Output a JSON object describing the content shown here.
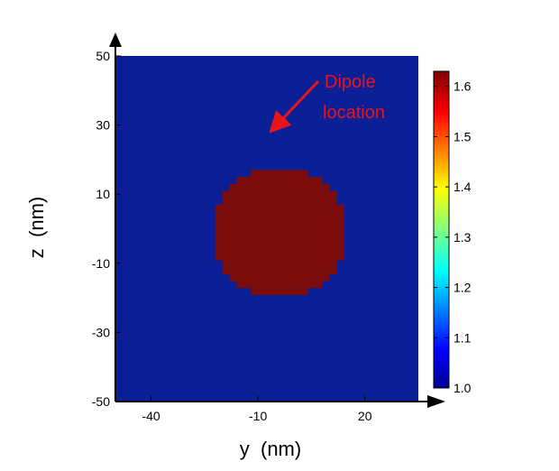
{
  "chart_data": {
    "type": "heatmap",
    "title": "",
    "xlabel": "y  (nm)",
    "ylabel": "z  (nm)",
    "xlim": [
      -50,
      35
    ],
    "ylim": [
      -50,
      50
    ],
    "x_ticks": [
      -40,
      -10,
      20
    ],
    "y_ticks": [
      -50,
      -30,
      -10,
      10,
      30,
      50
    ],
    "x_tick_labels": [
      "-40",
      "-10",
      "20"
    ],
    "y_tick_labels": [
      "-50",
      "-30",
      "-10",
      "10",
      "30",
      "50"
    ],
    "background_value": 1.0,
    "particle": {
      "shape": "pixelated disk",
      "value": 1.63,
      "center": [
        -4,
        -1
      ],
      "radius": 19,
      "grid_step": 2
    },
    "colorbar": {
      "range": [
        1.0,
        1.63
      ],
      "ticks": [
        1.0,
        1.1,
        1.2,
        1.3,
        1.4,
        1.5,
        1.6
      ],
      "tick_labels": [
        "1.0",
        "1.1",
        "1.2",
        "1.3",
        "1.4",
        "1.5",
        "1.6"
      ],
      "colormap": "jet"
    },
    "annotation": {
      "lines": [
        "Dipole",
        "location"
      ],
      "color": "#e8141c",
      "points_to": [
        -4,
        22
      ]
    },
    "colors": {
      "background": "#0a1e96",
      "particle": "#7a0c0c"
    }
  }
}
